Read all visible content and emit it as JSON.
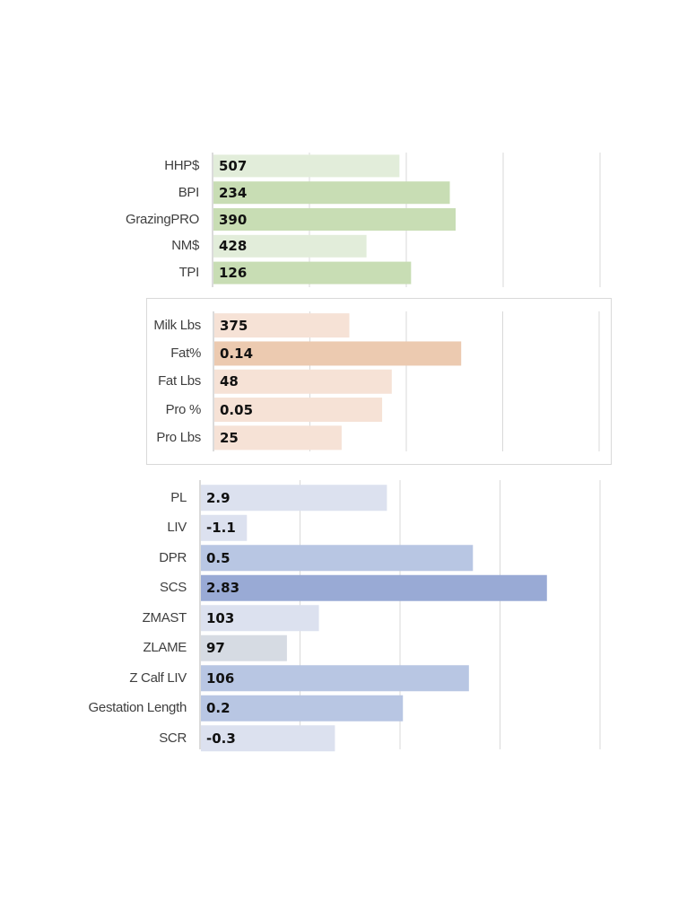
{
  "chart_data": [
    {
      "type": "bar",
      "orientation": "horizontal",
      "framed": false,
      "categories": [
        "HHP$",
        "BPI",
        "GrazingPRO",
        "NM$",
        "TPI"
      ],
      "values": [
        507,
        234,
        390,
        428,
        126
      ],
      "bar_colors": [
        "#e2edda",
        "#c8ddb4",
        "#c8ddb4",
        "#e2edda",
        "#c8ddb4"
      ],
      "bar_extent_fraction": [
        0.48,
        0.61,
        0.625,
        0.395,
        0.51
      ],
      "grid": true,
      "gridlines": 4
    },
    {
      "type": "bar",
      "orientation": "horizontal",
      "framed": true,
      "categories": [
        "Milk Lbs",
        "Fat%",
        "Fat Lbs",
        "Pro %",
        "Pro Lbs"
      ],
      "values": [
        375,
        0.14,
        48,
        0.05,
        25
      ],
      "bar_colors": [
        "#f6e2d6",
        "#eccab0",
        "#f6e2d6",
        "#f6e2d6",
        "#f6e2d6"
      ],
      "bar_extent_fraction": [
        0.35,
        0.64,
        0.46,
        0.435,
        0.33
      ],
      "grid": true,
      "gridlines": 4
    },
    {
      "type": "bar",
      "orientation": "horizontal",
      "framed": false,
      "categories": [
        "PL",
        "LIV",
        "DPR",
        "SCS",
        "ZMAST",
        "ZLAME",
        "Z Calf LIV",
        "Gestation Length",
        "SCR"
      ],
      "values": [
        2.9,
        -1.1,
        0.5,
        2.83,
        103,
        97,
        106,
        0.2,
        -0.3
      ],
      "bar_colors": [
        "#dce1ef",
        "#dce1ef",
        "#b8c6e3",
        "#99aad5",
        "#dce1ef",
        "#d6dbe3",
        "#b8c6e3",
        "#b8c6e3",
        "#dce1ef"
      ],
      "bar_extent_fraction": [
        0.465,
        0.115,
        0.68,
        0.865,
        0.295,
        0.215,
        0.67,
        0.505,
        0.335
      ],
      "grid": true,
      "gridlines": 4
    }
  ]
}
